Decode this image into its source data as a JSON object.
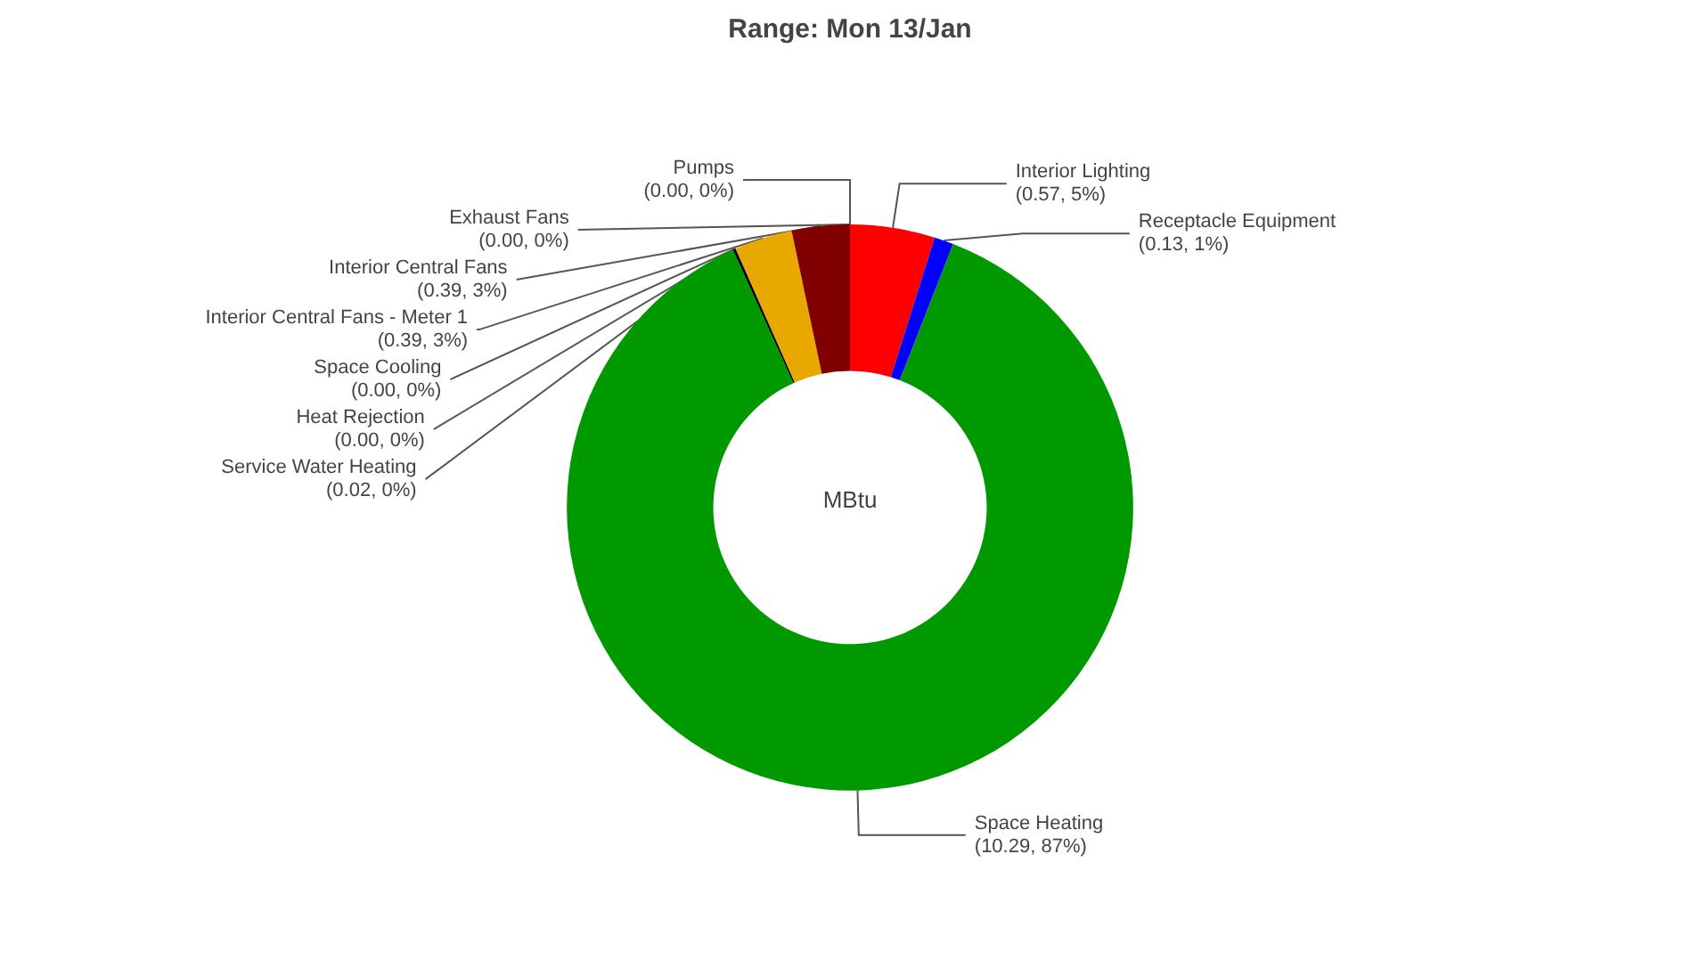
{
  "chart_data": {
    "type": "donut",
    "title": "Range: Mon 13/Jan",
    "categories": [
      "Pumps",
      "Interior Lighting",
      "Receptacle Equipment",
      "Space Heating",
      "Service Water Heating",
      "Space Cooling",
      "Heat Rejection",
      "Interior Central Fans - Meter 1",
      "Interior Central Fans",
      "Exhaust Fans"
    ],
    "values": [
      0.0,
      0.57,
      0.13,
      10.29,
      0.02,
      0.0,
      0.0,
      0.39,
      0.39,
      0.0
    ],
    "value_labels": [
      "(0.00, 0%)",
      "(0.57, 5%)",
      "(0.13, 1%)",
      "(10.29, 87%)",
      "(0.02, 0%)",
      "(0.00, 0%)",
      "(0.00, 0%)",
      "(0.39, 3%)",
      "(0.39, 3%)",
      "(0.00, 0%)"
    ],
    "colors": [
      "#808080",
      "#ff0000",
      "#0000ff",
      "#009900",
      "#000000",
      "#00ffff",
      "#ff00ff",
      "#e8a800",
      "#800000",
      "#808000"
    ],
    "annotations": [
      "MBtu"
    ],
    "legend": false
  }
}
